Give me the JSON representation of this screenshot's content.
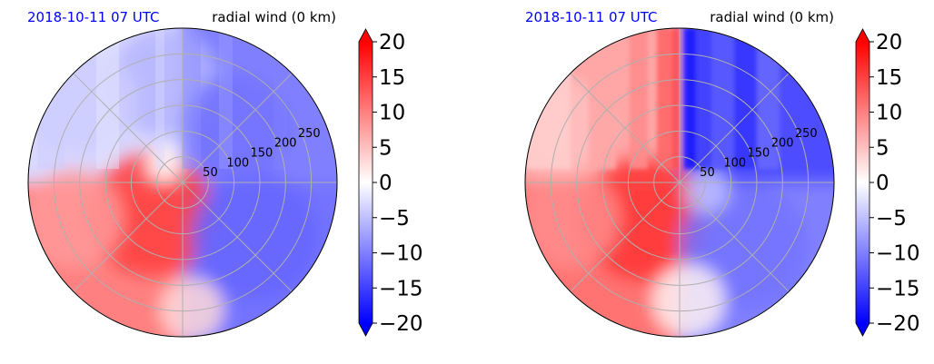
{
  "chart_data": [
    {
      "type": "heatmap",
      "projection": "polar",
      "title_left": "2018-10-11 07 UTC",
      "title_right": "radial wind (0 km)",
      "radial_tick_labels": [
        "50",
        "100",
        "150",
        "200",
        "250"
      ],
      "rlim": [
        0,
        300
      ],
      "angular_grid_deg": 45,
      "grid": true,
      "field_pattern": "smooth",
      "quadrant_values": {
        "NE": -10,
        "SE": -11,
        "SW": 10,
        "NW": -3
      },
      "colorbar": {
        "ticks": [
          "20",
          "15",
          "10",
          "5",
          "0",
          "−5",
          "−10",
          "−15",
          "−20"
        ],
        "range": [
          -20,
          20
        ],
        "colormap": "bwr",
        "extend": "both"
      }
    },
    {
      "type": "heatmap",
      "projection": "polar",
      "title_left": "2018-10-11 07 UTC",
      "title_right": "radial wind (0 km)",
      "radial_tick_labels": [
        "50",
        "100",
        "150",
        "200",
        "250"
      ],
      "rlim": [
        0,
        300
      ],
      "angular_grid_deg": 45,
      "grid": true,
      "field_pattern": "striped",
      "quadrant_values": {
        "NE": -14,
        "SE": -10,
        "SW": 11,
        "NW": 7
      },
      "colorbar": {
        "ticks": [
          "20",
          "15",
          "10",
          "5",
          "0",
          "−5",
          "−10",
          "−15",
          "−20"
        ],
        "range": [
          -20,
          20
        ],
        "colormap": "bwr",
        "extend": "both"
      }
    }
  ],
  "colors": {
    "positive": "#ff0000",
    "negative": "#0000ff",
    "zero": "#ffffff",
    "grid": "#b0b0b0",
    "title_date": "#0000ff"
  }
}
